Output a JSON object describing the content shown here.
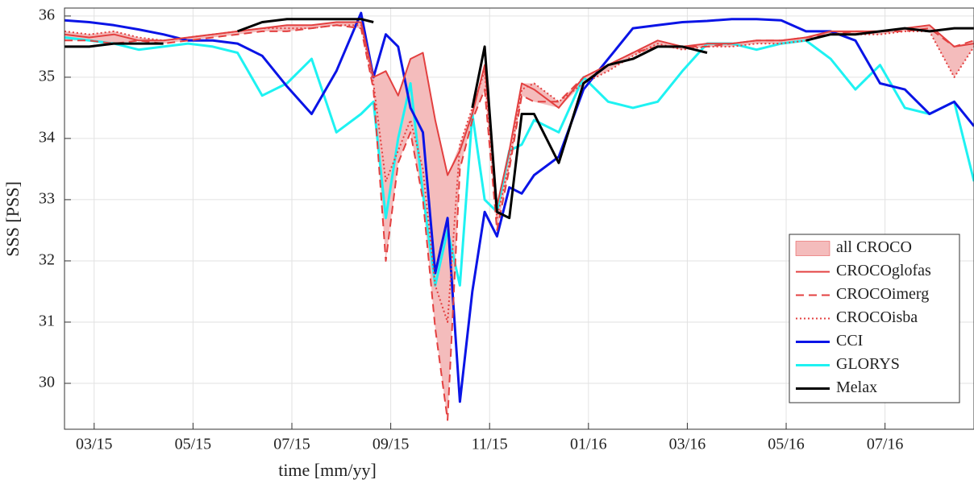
{
  "chart_data": {
    "type": "line",
    "xlabel": "time [mm/yy]",
    "ylabel": "SSS [PSS]",
    "x": [
      2.4,
      2.9,
      3.4,
      3.9,
      4.4,
      4.9,
      5.4,
      5.9,
      6.4,
      6.9,
      7.4,
      7.9,
      8.4,
      8.65,
      8.9,
      9.15,
      9.4,
      9.65,
      9.9,
      10.15,
      10.4,
      10.65,
      10.9,
      11.15,
      11.4,
      11.65,
      11.9,
      12.4,
      12.9,
      13.4,
      13.9,
      14.4,
      14.9,
      15.4,
      15.9,
      16.4,
      16.9,
      17.4,
      17.9,
      18.4,
      18.9,
      19.4,
      19.9,
      20.4,
      20.8
    ],
    "xlim": [
      2.4,
      20.8
    ],
    "xticks": [
      {
        "value": 3,
        "label": "03/15"
      },
      {
        "value": 5,
        "label": "05/15"
      },
      {
        "value": 7,
        "label": "07/15"
      },
      {
        "value": 9,
        "label": "09/15"
      },
      {
        "value": 11,
        "label": "11/15"
      },
      {
        "value": 13,
        "label": "01/16"
      },
      {
        "value": 15,
        "label": "03/16"
      },
      {
        "value": 17,
        "label": "05/16"
      },
      {
        "value": 19,
        "label": "07/16"
      }
    ],
    "ylim": [
      29.25,
      36.13
    ],
    "yticks": [
      30,
      31,
      32,
      33,
      34,
      35,
      36
    ],
    "grid": true,
    "legend": "southeast",
    "band": {
      "name": "all CROCO",
      "color": "#f4bcbc",
      "edge": "#e34040"
    },
    "series": [
      {
        "name": "CROCOglofas",
        "color": "#e34040",
        "dash": "solid",
        "band": true,
        "values": [
          35.7,
          35.65,
          35.7,
          35.6,
          35.6,
          35.65,
          35.7,
          35.75,
          35.8,
          35.85,
          35.85,
          35.9,
          35.9,
          35.0,
          35.1,
          34.7,
          35.3,
          35.4,
          34.3,
          33.4,
          33.8,
          34.4,
          35.2,
          32.9,
          33.8,
          34.9,
          34.8,
          34.5,
          35.0,
          35.2,
          35.4,
          35.6,
          35.5,
          35.55,
          35.55,
          35.6,
          35.6,
          35.65,
          35.75,
          35.75,
          35.75,
          35.8,
          35.85,
          35.5,
          35.55
        ]
      },
      {
        "name": "CROCOimerg",
        "color": "#e34040",
        "dash": "dashed",
        "band": true,
        "values": [
          35.6,
          35.6,
          35.55,
          35.6,
          35.55,
          35.6,
          35.65,
          35.7,
          35.75,
          35.75,
          35.8,
          35.85,
          35.8,
          34.8,
          32.0,
          33.6,
          34.1,
          33.0,
          30.9,
          29.4,
          33.5,
          34.3,
          34.8,
          32.5,
          33.5,
          34.7,
          34.6,
          34.6,
          35.0,
          35.2,
          35.4,
          35.5,
          35.5,
          35.5,
          35.55,
          35.6,
          35.6,
          35.65,
          35.7,
          35.75,
          35.75,
          35.75,
          35.8,
          35.5,
          35.6
        ]
      },
      {
        "name": "CROCOisba",
        "color": "#e34040",
        "dash": "dotted",
        "band": true,
        "values": [
          35.75,
          35.7,
          35.75,
          35.65,
          35.6,
          35.65,
          35.7,
          35.75,
          35.8,
          35.8,
          35.8,
          35.85,
          35.85,
          34.9,
          33.3,
          33.8,
          34.3,
          33.5,
          31.6,
          31.0,
          33.9,
          34.5,
          35.1,
          32.7,
          33.6,
          34.8,
          34.9,
          34.6,
          34.9,
          35.1,
          35.35,
          35.55,
          35.45,
          35.5,
          35.5,
          35.55,
          35.55,
          35.6,
          35.7,
          35.7,
          35.7,
          35.75,
          35.75,
          35.0,
          35.5
        ]
      },
      {
        "name": "CCI",
        "color": "#0a14e6",
        "dash": "solid",
        "values": [
          35.93,
          35.9,
          35.85,
          35.78,
          35.7,
          35.6,
          35.6,
          35.55,
          35.35,
          34.85,
          34.4,
          35.1,
          36.05,
          35.0,
          35.7,
          35.5,
          34.5,
          34.1,
          31.8,
          32.7,
          29.7,
          31.5,
          32.8,
          32.4,
          33.2,
          33.1,
          33.4,
          33.7,
          34.8,
          35.3,
          35.8,
          35.85,
          35.9,
          35.92,
          35.95,
          35.95,
          35.93,
          35.75,
          35.75,
          35.6,
          34.9,
          34.8,
          34.4,
          34.6,
          34.2
        ]
      },
      {
        "name": "GLORYS",
        "color": "#1ef2f2",
        "dash": "solid",
        "values": [
          35.65,
          35.6,
          35.55,
          35.45,
          35.5,
          35.55,
          35.5,
          35.4,
          34.7,
          34.9,
          35.3,
          34.1,
          34.4,
          34.6,
          32.7,
          34.0,
          34.9,
          33.1,
          31.6,
          32.5,
          31.6,
          34.4,
          33.0,
          32.8,
          33.8,
          33.9,
          34.3,
          34.1,
          35.0,
          34.6,
          34.5,
          34.6,
          35.1,
          35.55,
          35.55,
          35.45,
          35.55,
          35.6,
          35.3,
          34.8,
          35.2,
          34.5,
          34.4,
          34.6,
          33.3
        ]
      },
      {
        "name": "Melax",
        "color": "#000000",
        "dash": "solid",
        "values": [
          35.5,
          35.5,
          35.55,
          35.55,
          35.55,
          null,
          null,
          35.75,
          35.9,
          35.95,
          35.95,
          35.95,
          35.95,
          35.9,
          null,
          null,
          null,
          null,
          null,
          null,
          null,
          34.5,
          35.5,
          32.8,
          32.7,
          34.4,
          34.4,
          33.6,
          34.9,
          35.2,
          35.3,
          35.5,
          35.5,
          35.4,
          null,
          null,
          null,
          35.6,
          35.7,
          35.7,
          35.75,
          35.8,
          35.75,
          35.8,
          35.8
        ]
      }
    ]
  }
}
